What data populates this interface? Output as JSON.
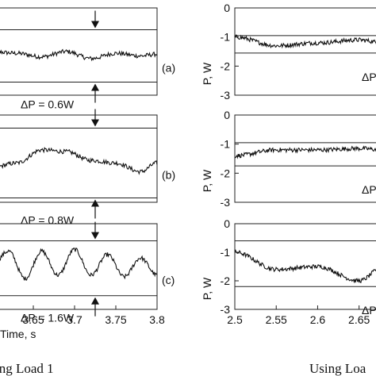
{
  "chart_data": [
    {
      "type": "line",
      "panel": "left",
      "subplot_label": "(a)",
      "annotation": "ΔP = 0.6W",
      "x": [
        3.6,
        3.63,
        3.66,
        3.69,
        3.72,
        3.75,
        3.78,
        3.8
      ],
      "y": [
        -1.0,
        -1.02,
        -1.06,
        -1.0,
        -1.08,
        -1.02,
        -1.05,
        -1.03
      ],
      "ref_lines": [
        -0.75,
        -1.35
      ],
      "xlim": [
        3.6,
        3.8
      ],
      "ylim": [
        -1.5,
        -0.5
      ],
      "x_ticks": [],
      "y_ticks": []
    },
    {
      "type": "line",
      "panel": "left",
      "subplot_label": "(b)",
      "annotation": "ΔP = 0.8W",
      "x": [
        3.6,
        3.63,
        3.66,
        3.69,
        3.72,
        3.75,
        3.78,
        3.8
      ],
      "y": [
        -1.1,
        -1.05,
        -0.9,
        -0.92,
        -1.02,
        -1.05,
        -1.15,
        -1.05
      ],
      "ref_lines": [
        -0.65,
        -1.45
      ],
      "xlim": [
        3.6,
        3.8
      ],
      "ylim": [
        -1.5,
        -0.5
      ],
      "x_ticks": [],
      "y_ticks": []
    },
    {
      "type": "line",
      "panel": "left",
      "subplot_label": "(c)",
      "annotation": "ΔP = 1.6W",
      "x": [
        3.6,
        3.62,
        3.64,
        3.66,
        3.68,
        3.7,
        3.72,
        3.74,
        3.76,
        3.78,
        3.8
      ],
      "y": [
        -1.2,
        -0.8,
        -1.6,
        -0.8,
        -1.5,
        -0.75,
        -1.5,
        -0.9,
        -1.55,
        -1.0,
        -1.5
      ],
      "ref_lines": [
        -0.5,
        -2.1
      ],
      "xlim": [
        3.6,
        3.8
      ],
      "ylim": [
        -2.5,
        0
      ],
      "xlabel": "Time, s",
      "x_ticks": [
        "3.65",
        "3.7",
        "3.75",
        "3.8"
      ],
      "y_ticks": []
    },
    {
      "type": "line",
      "panel": "right",
      "ylabel": "P, W",
      "annotation": "ΔP",
      "x": [
        2.5,
        2.55,
        2.6,
        2.65,
        2.68
      ],
      "y": [
        -1.0,
        -1.3,
        -1.2,
        -1.1,
        -1.2
      ],
      "ref_lines": [
        -0.95,
        -1.55
      ],
      "xlim": [
        2.5,
        2.68
      ],
      "ylim": [
        -3,
        0
      ],
      "y_ticks": [
        "0",
        "-1",
        "-2",
        "-3"
      ],
      "x_ticks": []
    },
    {
      "type": "line",
      "panel": "right",
      "ylabel": "P, W",
      "annotation": "ΔP",
      "x": [
        2.5,
        2.55,
        2.6,
        2.65,
        2.68
      ],
      "y": [
        -1.4,
        -1.2,
        -1.2,
        -1.15,
        -1.2
      ],
      "ref_lines": [
        -0.95,
        -1.75
      ],
      "xlim": [
        2.5,
        2.68
      ],
      "ylim": [
        -3,
        0
      ],
      "y_ticks": [
        "0",
        "-1",
        "-2",
        "-3"
      ],
      "x_ticks": []
    },
    {
      "type": "line",
      "panel": "right",
      "ylabel": "P, W",
      "annotation": "ΔP",
      "x": [
        2.5,
        2.55,
        2.6,
        2.65,
        2.68
      ],
      "y": [
        -1.0,
        -1.6,
        -1.5,
        -2.0,
        -1.5
      ],
      "ref_lines": [
        -0.6,
        -2.2
      ],
      "xlim": [
        2.5,
        2.68
      ],
      "ylim": [
        -3,
        0
      ],
      "y_ticks": [
        "0",
        "-1",
        "-2",
        "-3"
      ],
      "x_ticks": [
        "2.5",
        "2.55",
        "2.6",
        "2.65"
      ]
    }
  ],
  "captions": {
    "left": "ing Load 1",
    "right": "Using Loa"
  }
}
